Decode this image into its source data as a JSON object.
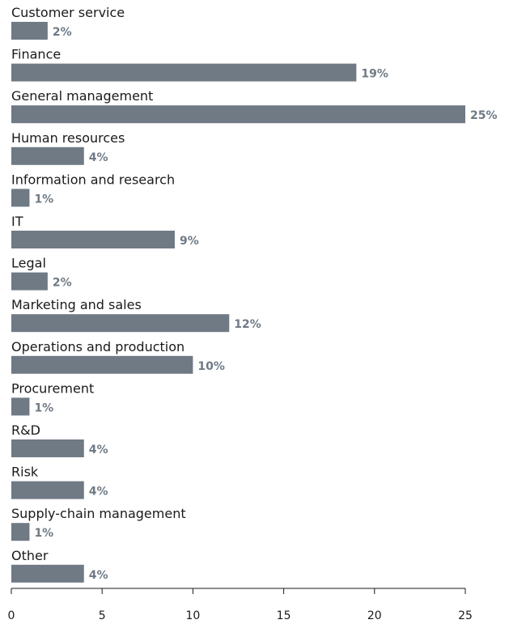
{
  "chart_data": {
    "type": "bar",
    "orientation": "horizontal",
    "categories": [
      "Customer service",
      "Finance",
      "General management",
      "Human resources",
      "Information and research",
      "IT",
      "Legal",
      "Marketing and sales",
      "Operations and production",
      "Procurement",
      "R&D",
      "Risk",
      "Supply-chain management",
      "Other"
    ],
    "values": [
      2,
      19,
      25,
      4,
      1,
      9,
      2,
      12,
      10,
      1,
      4,
      4,
      1,
      4
    ],
    "value_labels": [
      "2%",
      "19%",
      "25%",
      "4%",
      "1%",
      "9%",
      "2%",
      "12%",
      "10%",
      "1%",
      "4%",
      "4%",
      "1%",
      "4%"
    ],
    "xlim": [
      0,
      25
    ],
    "xticks": [
      0,
      5,
      10,
      15,
      20,
      25
    ],
    "grid": false,
    "colors": {
      "bar": "#6f7a85",
      "value_label": "#6f7a85",
      "text": "#1a1a1a",
      "axis": "#1a1a1a"
    }
  }
}
